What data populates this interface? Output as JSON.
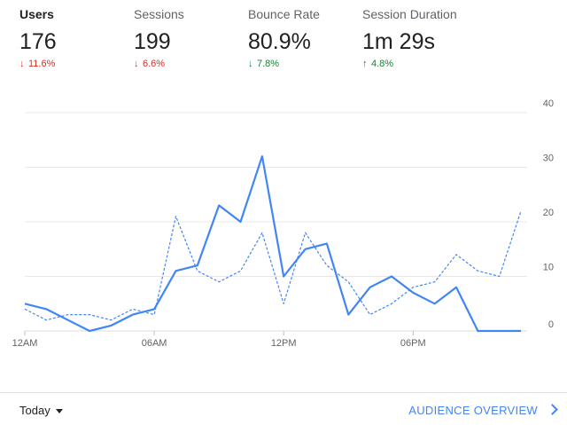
{
  "metrics": [
    {
      "label": "Users",
      "value": "176",
      "change": "11.6%",
      "direction": "down",
      "tone": "neg",
      "active": true
    },
    {
      "label": "Sessions",
      "value": "199",
      "change": "6.6%",
      "direction": "down",
      "tone": "neg",
      "active": false
    },
    {
      "label": "Bounce Rate",
      "value": "80.9%",
      "change": "7.8%",
      "direction": "down",
      "tone": "pos",
      "active": false
    },
    {
      "label": "Session Duration",
      "value": "1m 29s",
      "change": "4.8%",
      "direction": "up",
      "tone": "pos",
      "active": false
    }
  ],
  "chart_data": {
    "type": "line",
    "x": [
      "12AM",
      "01AM",
      "02AM",
      "03AM",
      "04AM",
      "05AM",
      "06AM",
      "07AM",
      "08AM",
      "09AM",
      "10AM",
      "11AM",
      "12PM",
      "01PM",
      "02PM",
      "03PM",
      "04PM",
      "05PM",
      "06PM",
      "07PM",
      "08PM",
      "09PM",
      "10PM",
      "11PM"
    ],
    "x_tick_labels": [
      "12AM",
      "06AM",
      "12PM",
      "06PM"
    ],
    "y_ticks": [
      0,
      10,
      20,
      30,
      40
    ],
    "ylim": [
      0,
      40
    ],
    "grid": true,
    "series": [
      {
        "style": "solid",
        "color": "#4285f4",
        "values": [
          5,
          4,
          2,
          0,
          1,
          3,
          4,
          11,
          12,
          23,
          20,
          32,
          10,
          15,
          16,
          3,
          8,
          10,
          7,
          5,
          8,
          0,
          0,
          0
        ]
      },
      {
        "style": "dashed",
        "color": "#4285f4",
        "values": [
          4,
          2,
          3,
          3,
          2,
          4,
          3,
          21,
          11,
          9,
          11,
          18,
          5,
          18,
          12,
          9,
          3,
          5,
          8,
          9,
          14,
          11,
          10,
          22
        ]
      }
    ]
  },
  "footer": {
    "date_range": "Today",
    "link_label": "AUDIENCE OVERVIEW"
  },
  "icons": {
    "down_arrow": "arrow-down-icon",
    "up_arrow": "arrow-up-icon",
    "caret": "caret-down-icon",
    "chevron": "chevron-right-icon"
  }
}
